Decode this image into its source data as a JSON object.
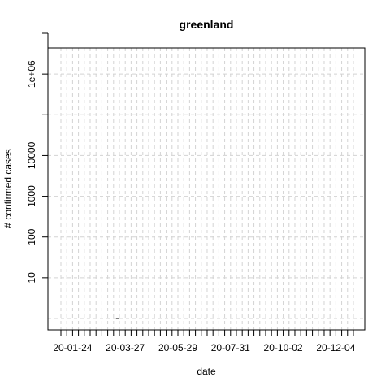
{
  "chart_data": {
    "type": "line",
    "title": "greenland",
    "xlabel": "date",
    "ylabel": "# confirmed cases",
    "x_start": "2020-01-10",
    "x_end": "2020-12-26",
    "x_tick_every_days": 7,
    "x_tick_labels": [
      {
        "date": "2020-01-24",
        "label": "20-01-24"
      },
      {
        "date": "2020-03-27",
        "label": "20-03-27"
      },
      {
        "date": "2020-05-29",
        "label": "20-05-29"
      },
      {
        "date": "2020-07-31",
        "label": "20-07-31"
      },
      {
        "date": "2020-10-02",
        "label": "20-10-02"
      },
      {
        "date": "2020-12-04",
        "label": "20-12-04"
      }
    ],
    "y_scale": "log10",
    "ylim": [
      1,
      10000000
    ],
    "y_ticks": [
      {
        "value": 10,
        "label": "10"
      },
      {
        "value": 100,
        "label": "100"
      },
      {
        "value": 1000,
        "label": "1000"
      },
      {
        "value": 10000,
        "label": "10000"
      },
      {
        "value": 100000,
        "label": ""
      },
      {
        "value": 1000000,
        "label": "1e+06"
      },
      {
        "value": 10000000,
        "label": ""
      }
    ],
    "grid": true,
    "series": [
      {
        "color": "#000000",
        "points": [
          {
            "date": "2020-03-16",
            "value": 1
          },
          {
            "date": "2020-03-17",
            "value": 1
          },
          {
            "date": "2020-03-18",
            "value": 1
          },
          {
            "date": "2020-03-19",
            "value": 1
          },
          {
            "date": "2020-03-20",
            "value": 1
          }
        ]
      }
    ]
  }
}
